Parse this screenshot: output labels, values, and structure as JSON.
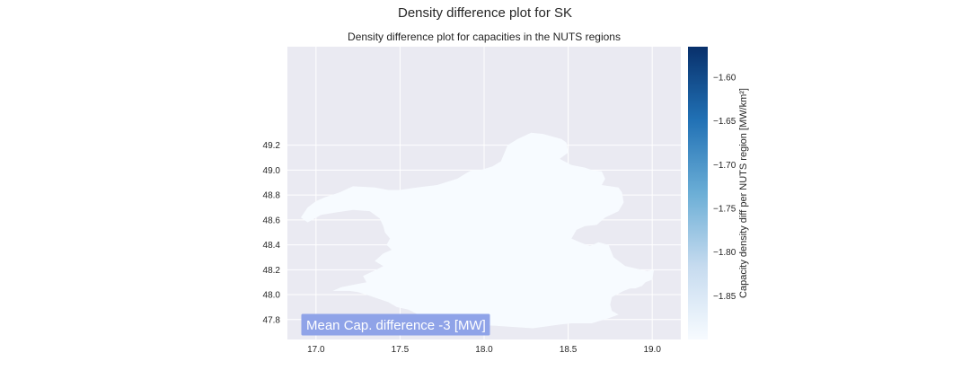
{
  "figure": {
    "suptitle": "Density difference plot for SK",
    "title": "Density difference plot for capacities in the NUTS regions"
  },
  "chart_data": {
    "type": "choropleth",
    "region": "SK",
    "xlim": [
      16.83,
      19.17
    ],
    "ylim": [
      47.64,
      49.99
    ],
    "x_ticks": [
      "17.0",
      "17.5",
      "18.0",
      "18.5",
      "19.0"
    ],
    "y_ticks": [
      "47.8",
      "48.0",
      "48.2",
      "48.4",
      "48.6",
      "48.8",
      "49.0",
      "49.2"
    ],
    "x_tick_values": [
      17.0,
      17.5,
      18.0,
      18.5,
      19.0
    ],
    "y_tick_values": [
      47.8,
      48.0,
      48.2,
      48.4,
      48.6,
      48.8,
      49.0,
      49.2
    ],
    "grid": true,
    "region_fill_value": -1.895,
    "colorbar": {
      "label": "Capacity density diff per NUTS region [MW/km²]",
      "range": [
        -1.9,
        -1.565
      ],
      "ticks": [
        "−1.60",
        "−1.65",
        "−1.70",
        "−1.75",
        "−1.80",
        "−1.85"
      ],
      "tick_values": [
        -1.6,
        -1.65,
        -1.7,
        -1.75,
        -1.8,
        -1.85
      ],
      "colormap": "Blues",
      "color_low": "#f7fbff",
      "color_high": "#08306b"
    },
    "annotation": "Mean Cap. difference -3 [MW]",
    "annotation_color": "#8fa3e8",
    "background": "#eaeaf2",
    "outline": [
      [
        18.35,
        49.29
      ],
      [
        18.46,
        49.25
      ],
      [
        18.49,
        49.22
      ],
      [
        18.5,
        49.14
      ],
      [
        18.45,
        49.09
      ],
      [
        18.52,
        49.04
      ],
      [
        18.6,
        49.02
      ],
      [
        18.64,
        49.0
      ],
      [
        18.7,
        48.99
      ],
      [
        18.72,
        48.93
      ],
      [
        18.7,
        48.88
      ],
      [
        18.8,
        48.86
      ],
      [
        18.82,
        48.82
      ],
      [
        18.83,
        48.74
      ],
      [
        18.8,
        48.67
      ],
      [
        18.72,
        48.62
      ],
      [
        18.67,
        48.56
      ],
      [
        18.6,
        48.55
      ],
      [
        18.55,
        48.52
      ],
      [
        18.52,
        48.45
      ],
      [
        18.57,
        48.42
      ],
      [
        18.63,
        48.39
      ],
      [
        18.68,
        48.42
      ],
      [
        18.74,
        48.4
      ],
      [
        18.77,
        48.3
      ],
      [
        18.84,
        48.23
      ],
      [
        18.97,
        48.19
      ],
      [
        19.01,
        48.2
      ],
      [
        19.0,
        48.12
      ],
      [
        18.96,
        48.1
      ],
      [
        18.94,
        48.07
      ],
      [
        18.9,
        48.05
      ],
      [
        18.87,
        48.05
      ],
      [
        18.83,
        48.03
      ],
      [
        18.76,
        47.98
      ],
      [
        18.75,
        47.92
      ],
      [
        18.76,
        47.87
      ],
      [
        18.8,
        47.84
      ],
      [
        18.74,
        47.81
      ],
      [
        18.64,
        47.77
      ],
      [
        18.52,
        47.77
      ],
      [
        18.45,
        47.76
      ],
      [
        18.29,
        47.73
      ],
      [
        18.18,
        47.74
      ],
      [
        18.07,
        47.75
      ],
      [
        17.94,
        47.76
      ],
      [
        17.89,
        47.76
      ],
      [
        17.82,
        47.75
      ],
      [
        17.73,
        47.77
      ],
      [
        17.65,
        47.81
      ],
      [
        17.55,
        47.88
      ],
      [
        17.48,
        47.9
      ],
      [
        17.43,
        47.94
      ],
      [
        17.3,
        48.0
      ],
      [
        17.25,
        48.02
      ],
      [
        17.2,
        48.03
      ],
      [
        17.13,
        48.03
      ],
      [
        17.1,
        48.03
      ],
      [
        17.15,
        48.06
      ],
      [
        17.3,
        48.1
      ],
      [
        17.28,
        48.15
      ],
      [
        17.36,
        48.2
      ],
      [
        17.4,
        48.23
      ],
      [
        17.35,
        48.27
      ],
      [
        17.4,
        48.33
      ],
      [
        17.45,
        48.36
      ],
      [
        17.42,
        48.4
      ],
      [
        17.44,
        48.45
      ],
      [
        17.41,
        48.5
      ],
      [
        17.4,
        48.55
      ],
      [
        17.38,
        48.61
      ],
      [
        17.32,
        48.67
      ],
      [
        17.22,
        48.68
      ],
      [
        17.12,
        48.66
      ],
      [
        17.03,
        48.64
      ],
      [
        16.95,
        48.58
      ],
      [
        16.91,
        48.62
      ],
      [
        16.95,
        48.7
      ],
      [
        17.0,
        48.75
      ],
      [
        17.05,
        48.78
      ],
      [
        17.14,
        48.82
      ],
      [
        17.22,
        48.87
      ],
      [
        17.35,
        48.86
      ],
      [
        17.43,
        48.84
      ],
      [
        17.5,
        48.84
      ],
      [
        17.6,
        48.86
      ],
      [
        17.72,
        48.88
      ],
      [
        17.84,
        48.93
      ],
      [
        17.9,
        48.98
      ],
      [
        17.93,
        49.0
      ],
      [
        17.98,
        49.0
      ],
      [
        18.05,
        49.03
      ],
      [
        18.1,
        49.07
      ],
      [
        18.14,
        49.2
      ],
      [
        18.2,
        49.25
      ],
      [
        18.28,
        49.3
      ],
      [
        18.35,
        49.29
      ]
    ]
  }
}
